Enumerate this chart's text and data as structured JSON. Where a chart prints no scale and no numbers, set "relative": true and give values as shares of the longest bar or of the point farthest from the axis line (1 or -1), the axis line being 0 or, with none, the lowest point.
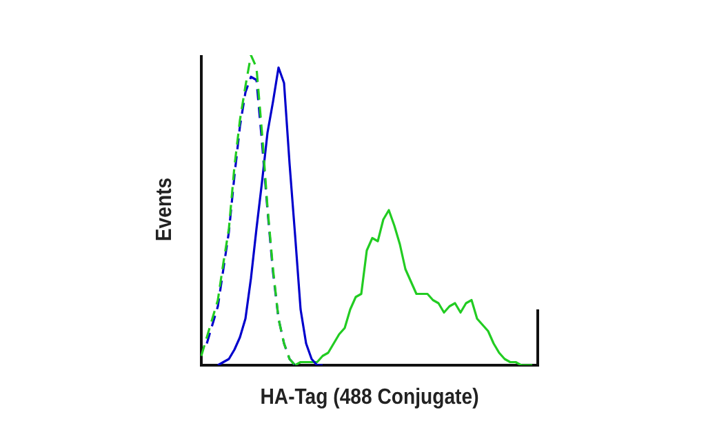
{
  "chart_data": {
    "type": "line",
    "relative": true,
    "xlabel": "HA-Tag (488 Conjugate)",
    "ylabel": "Events",
    "legend": false,
    "marker": "none",
    "categories": [
      null,
      null,
      null,
      null,
      null,
      null,
      null,
      null,
      null,
      null,
      null,
      null,
      null,
      null,
      null,
      null,
      null,
      null,
      null,
      null,
      null,
      null,
      null,
      null,
      null,
      null,
      null,
      null,
      null,
      null,
      null,
      null,
      null,
      null,
      null,
      null,
      null,
      null,
      null,
      null,
      null,
      null,
      null,
      null,
      null,
      null,
      null,
      null,
      null,
      null,
      null,
      null,
      null,
      null,
      null,
      null,
      null,
      null,
      null,
      null,
      null,
      null
    ],
    "series": [
      {
        "color": "#22cc22",
        "line_style": "dashed",
        "values": [
          0.03,
          0.09,
          0.15,
          0.21,
          0.33,
          0.44,
          0.64,
          0.79,
          0.9,
          1,
          0.96,
          0.75,
          0.51,
          0.31,
          0.15,
          0.07,
          0.02,
          0,
          null,
          null,
          null,
          null,
          null,
          null,
          null,
          null,
          null,
          null,
          null,
          null,
          null,
          null,
          null,
          null,
          null,
          null,
          null,
          null,
          null,
          null,
          null,
          null,
          null,
          null,
          null,
          null,
          null,
          null,
          null,
          null,
          null,
          null,
          null,
          null,
          null,
          null,
          null,
          null,
          null,
          null,
          null,
          null
        ]
      },
      {
        "color": "#0000cc",
        "line_style": "dashed",
        "values": [
          null,
          0.07,
          0.13,
          0.19,
          0.31,
          0.43,
          0.61,
          0.77,
          0.88,
          0.93,
          0.92,
          0.72,
          0.5,
          0.3,
          0.15,
          0.07,
          0.02,
          0,
          null,
          null,
          null,
          null,
          null,
          null,
          null,
          null,
          null,
          null,
          null,
          null,
          null,
          null,
          null,
          null,
          null,
          null,
          null,
          null,
          null,
          null,
          null,
          null,
          null,
          null,
          null,
          null,
          null,
          null,
          null,
          null,
          null,
          null,
          null,
          null,
          null,
          null,
          null,
          null,
          null,
          null,
          null,
          null
        ]
      },
      {
        "color": "#0000cc",
        "line_style": "solid",
        "values": [
          null,
          null,
          null,
          0,
          0.01,
          0.02,
          0.05,
          0.09,
          0.15,
          0.28,
          0.44,
          0.59,
          0.75,
          0.85,
          0.96,
          0.91,
          0.65,
          0.42,
          0.18,
          0.07,
          0.02,
          0,
          0,
          null,
          null,
          null,
          null,
          null,
          null,
          null,
          null,
          null,
          null,
          null,
          null,
          null,
          null,
          null,
          null,
          null,
          null,
          null,
          null,
          null,
          null,
          null,
          null,
          null,
          null,
          null,
          null,
          null,
          null,
          null,
          null,
          null,
          null,
          null,
          null,
          null,
          null,
          null
        ]
      },
      {
        "color": "#22cc22",
        "line_style": "solid",
        "values": [
          null,
          null,
          null,
          null,
          null,
          null,
          null,
          null,
          null,
          null,
          null,
          null,
          null,
          null,
          null,
          null,
          null,
          0,
          0.01,
          0.01,
          0.01,
          0.01,
          0.03,
          0.04,
          0.07,
          0.1,
          0.12,
          0.18,
          0.22,
          0.23,
          0.37,
          0.41,
          0.4,
          0.47,
          0.5,
          0.45,
          0.39,
          0.31,
          0.27,
          0.23,
          0.23,
          0.23,
          0.21,
          0.2,
          0.17,
          0.19,
          0.2,
          0.17,
          0.2,
          0.21,
          0.15,
          0.13,
          0.11,
          0.07,
          0.04,
          0.02,
          0.01,
          0.01,
          0,
          0,
          0,
          null
        ]
      }
    ]
  }
}
